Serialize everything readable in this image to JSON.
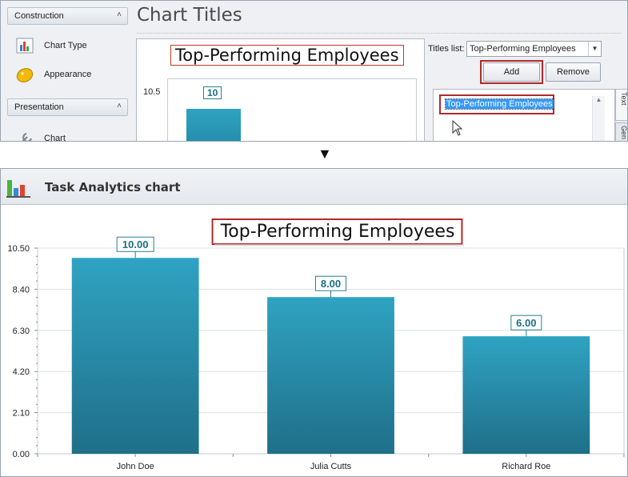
{
  "designer": {
    "nav_sections": [
      {
        "header": "Construction"
      },
      {
        "header": "Presentation"
      }
    ],
    "nav_items": [
      {
        "label": "Chart Type",
        "icon": "chart-type-icon"
      },
      {
        "label": "Appearance",
        "icon": "appearance-icon"
      },
      {
        "label": "Chart",
        "icon": "chart-wrench-icon"
      }
    ],
    "title": "Chart Titles",
    "preview": {
      "title": "Top-Performing Employees",
      "tick_label": "10.5",
      "bar_label": "10"
    },
    "titles_list_label": "Titles list:",
    "titles_list_value": "Top-Performing Employees",
    "add_button": "Add",
    "remove_button": "Remove",
    "list_items": [
      "Top-Performing Employees"
    ],
    "side_tabs": [
      "Text",
      "Gen"
    ]
  },
  "window": {
    "title": "Task Analytics chart"
  },
  "chart_data": {
    "type": "bar",
    "title": "Top-Performing Employees",
    "categories": [
      "John Doe",
      "Julia Cutts",
      "Richard Roe"
    ],
    "values": [
      10.0,
      8.0,
      6.0
    ],
    "value_labels": [
      "10.00",
      "8.00",
      "6.00"
    ],
    "y_tick_labels": [
      "0.00",
      "2.10",
      "4.20",
      "6.30",
      "8.40",
      "10.50"
    ],
    "y_ticks": [
      0,
      2.1,
      4.2,
      6.3,
      8.4,
      10.5
    ],
    "ylim": [
      0,
      10.5
    ],
    "grid": true,
    "colors": {
      "bar_top": "#2fa3c2",
      "bar_bottom": "#1f6f89",
      "label_border": "#2a7f93",
      "label_text": "#1c6e86",
      "title_border": "#b22a2a"
    }
  }
}
